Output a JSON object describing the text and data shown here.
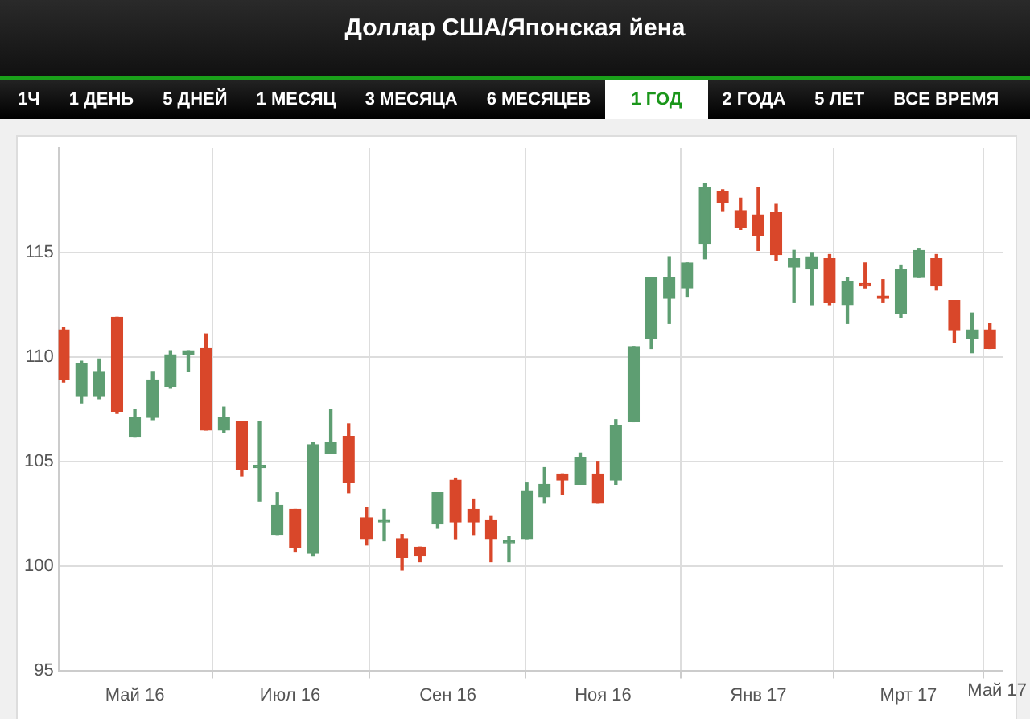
{
  "chart_data": {
    "type": "candlestick",
    "title": "Доллар США/Японская йена",
    "annotations": [
      "1Ч",
      "1 ДЕНЬ",
      "5 ДНЕЙ",
      "1 МЕСЯЦ",
      "3 МЕСЯЦА",
      "6 МЕСЯЦЕВ",
      "1 ГОД",
      "2 ГОДА",
      "5 ЛЕТ",
      "ВСЕ ВРЕМЯ",
      "Май 17"
    ],
    "x": [
      "2016-04-03",
      "2016-04-10",
      "2016-04-17",
      "2016-04-24",
      "2016-05-01",
      "2016-05-08",
      "2016-05-15",
      "2016-05-22",
      "2016-05-29",
      "2016-06-05",
      "2016-06-12",
      "2016-06-19",
      "2016-06-26",
      "2016-07-03",
      "2016-07-10",
      "2016-07-17",
      "2016-07-24",
      "2016-07-31",
      "2016-08-07",
      "2016-08-14",
      "2016-08-21",
      "2016-08-28",
      "2016-09-04",
      "2016-09-11",
      "2016-09-18",
      "2016-09-25",
      "2016-10-02",
      "2016-10-09",
      "2016-10-16",
      "2016-10-23",
      "2016-10-30",
      "2016-11-06",
      "2016-11-13",
      "2016-11-20",
      "2016-11-27",
      "2016-12-04",
      "2016-12-11",
      "2016-12-18",
      "2016-12-25",
      "2017-01-01",
      "2017-01-08",
      "2017-01-15",
      "2017-01-22",
      "2017-01-29",
      "2017-02-05",
      "2017-02-12",
      "2017-02-19",
      "2017-02-26",
      "2017-03-05",
      "2017-03-12",
      "2017-03-19",
      "2017-03-26",
      "2017-04-02"
    ],
    "ohlc": [
      [
        111.3,
        111.4,
        108.8,
        108.9
      ],
      [
        108.1,
        109.8,
        107.8,
        109.7
      ],
      [
        108.1,
        109.9,
        108.0,
        109.3
      ],
      [
        111.9,
        111.9,
        107.3,
        107.4
      ],
      [
        106.2,
        107.5,
        106.2,
        107.1
      ],
      [
        107.1,
        109.3,
        107.0,
        108.9
      ],
      [
        108.6,
        110.3,
        108.5,
        110.1
      ],
      [
        110.1,
        110.3,
        109.3,
        110.3
      ],
      [
        110.4,
        111.1,
        106.5,
        106.5
      ],
      [
        106.5,
        107.6,
        106.4,
        107.1
      ],
      [
        106.9,
        106.9,
        104.3,
        104.6
      ],
      [
        104.7,
        106.9,
        103.1,
        104.8
      ],
      [
        101.5,
        103.5,
        101.5,
        102.9
      ],
      [
        102.7,
        102.7,
        100.7,
        100.9
      ],
      [
        100.6,
        105.9,
        100.5,
        105.8
      ],
      [
        105.4,
        107.5,
        105.4,
        105.9
      ],
      [
        106.2,
        106.8,
        103.5,
        104.0
      ],
      [
        102.3,
        102.8,
        101.0,
        101.3
      ],
      [
        102.1,
        102.7,
        101.2,
        102.2
      ],
      [
        101.3,
        101.5,
        99.8,
        100.4
      ],
      [
        100.9,
        100.9,
        100.2,
        100.5
      ],
      [
        102.0,
        103.5,
        101.8,
        103.5
      ],
      [
        104.1,
        104.2,
        101.3,
        102.1
      ],
      [
        102.7,
        103.2,
        101.5,
        102.1
      ],
      [
        102.2,
        102.4,
        100.2,
        101.3
      ],
      [
        101.1,
        101.4,
        100.2,
        101.2
      ],
      [
        101.3,
        104.0,
        101.3,
        103.6
      ],
      [
        103.3,
        104.7,
        103.0,
        103.9
      ],
      [
        104.4,
        104.4,
        103.4,
        104.1
      ],
      [
        103.9,
        105.4,
        103.9,
        105.2
      ],
      [
        104.4,
        105.0,
        103.0,
        103.0
      ],
      [
        104.1,
        107.0,
        103.9,
        106.7
      ],
      [
        106.9,
        110.5,
        106.9,
        110.5
      ],
      [
        110.9,
        113.8,
        110.4,
        113.8
      ],
      [
        112.8,
        114.8,
        111.6,
        113.8
      ],
      [
        113.3,
        114.5,
        112.9,
        114.5
      ],
      [
        115.4,
        118.3,
        114.7,
        118.1
      ],
      [
        117.9,
        118.0,
        117.0,
        117.4
      ],
      [
        117.0,
        117.6,
        116.1,
        116.2
      ],
      [
        116.8,
        118.1,
        115.1,
        115.8
      ],
      [
        116.9,
        117.3,
        114.6,
        114.9
      ],
      [
        114.3,
        115.1,
        112.6,
        114.7
      ],
      [
        114.2,
        115.0,
        112.5,
        114.8
      ],
      [
        114.7,
        114.9,
        112.5,
        112.6
      ],
      [
        112.5,
        113.8,
        111.6,
        113.6
      ],
      [
        113.5,
        114.5,
        113.3,
        113.4
      ],
      [
        112.9,
        113.7,
        112.6,
        112.8
      ],
      [
        112.1,
        114.4,
        111.9,
        114.2
      ],
      [
        113.8,
        115.2,
        113.8,
        115.1
      ],
      [
        114.7,
        114.9,
        113.2,
        113.4
      ],
      [
        112.7,
        112.7,
        110.7,
        111.3
      ],
      [
        110.9,
        112.1,
        110.2,
        111.3
      ],
      [
        111.3,
        111.6,
        110.4,
        110.4
      ]
    ],
    "colors": [
      "#d9472a",
      "#5e9e72",
      "#5e9e72",
      "#d9472a",
      "#5e9e72",
      "#5e9e72",
      "#5e9e72",
      "#5e9e72",
      "#d9472a",
      "#5e9e72",
      "#d9472a",
      "#5e9e72",
      "#5e9e72",
      "#d9472a",
      "#5e9e72",
      "#5e9e72",
      "#d9472a",
      "#d9472a",
      "#5e9e72",
      "#d9472a",
      "#d9472a",
      "#5e9e72",
      "#d9472a",
      "#d9472a",
      "#d9472a",
      "#5e9e72",
      "#5e9e72",
      "#5e9e72",
      "#d9472a",
      "#5e9e72",
      "#d9472a",
      "#5e9e72",
      "#5e9e72",
      "#5e9e72",
      "#5e9e72",
      "#5e9e72",
      "#5e9e72",
      "#d9472a",
      "#d9472a",
      "#d9472a",
      "#d9472a",
      "#5e9e72",
      "#5e9e72",
      "#d9472a",
      "#5e9e72",
      "#d9472a",
      "#d9472a",
      "#5e9e72",
      "#5e9e72",
      "#d9472a",
      "#d9472a",
      "#5e9e72",
      "#d9472a"
    ],
    "xlim": [
      "2016-04-01",
      "2017-04-07"
    ],
    "xticks": [
      {
        "value": "2016-05-01",
        "label": "Май 16"
      },
      {
        "value": "2016-07-01",
        "label": "Июл 16"
      },
      {
        "value": "2016-09-01",
        "label": "Сен 16"
      },
      {
        "value": "2016-11-01",
        "label": "Ноя 16"
      },
      {
        "value": "2017-01-01",
        "label": "Янв 17"
      },
      {
        "value": "2017-03-01",
        "label": "Мрт 17"
      }
    ],
    "ylim": [
      95,
      120
    ],
    "yticks": [
      95,
      100,
      105,
      110,
      115
    ],
    "grid": true,
    "legend": false
  }
}
